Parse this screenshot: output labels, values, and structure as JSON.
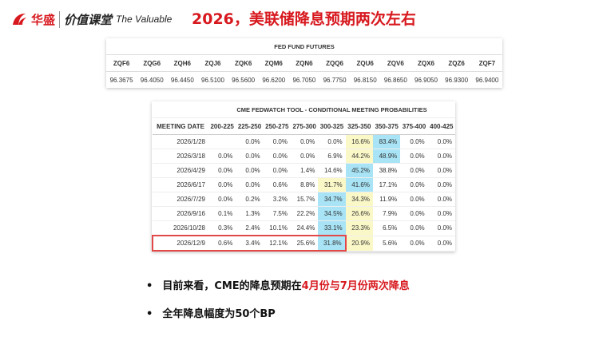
{
  "header": {
    "brand": "华盛",
    "course": "价值课堂",
    "tagline": "The Valuable",
    "title": "2026，美联储降息预期两次左右"
  },
  "futures_table": {
    "title": "FED FUND FUTURES",
    "columns": [
      "ZQF6",
      "ZQG6",
      "ZQH6",
      "ZQJ6",
      "ZQK6",
      "ZQM6",
      "ZQN6",
      "ZQQ6",
      "ZQU6",
      "ZQV6",
      "ZQX6",
      "ZQZ6",
      "ZQF7"
    ],
    "values": [
      "96.3675",
      "96.4050",
      "96.4450",
      "96.5100",
      "96.5600",
      "96.6200",
      "96.7050",
      "96.7750",
      "96.8150",
      "96.8650",
      "96.9050",
      "96.9300",
      "96.9400"
    ]
  },
  "fedwatch_table": {
    "title": "CME FEDWATCH TOOL - CONDITIONAL MEETING PROBABILITIES",
    "date_header": "MEETING DATE",
    "columns": [
      "200-225",
      "225-250",
      "250-275",
      "275-300",
      "300-325",
      "325-350",
      "350-375",
      "375-400",
      "400-425"
    ],
    "rows": [
      [
        "2026/1/28",
        null,
        "0.0%",
        "0.0%",
        "0.0%",
        "0.0%",
        "16.6%",
        "83.4%",
        "0.0%",
        "0.0%"
      ],
      [
        "2026/3/18",
        "0.0%",
        "0.0%",
        "0.0%",
        "0.0%",
        "6.9%",
        "44.2%",
        "48.9%",
        "0.0%",
        "0.0%"
      ],
      [
        "2026/4/29",
        "0.0%",
        "0.0%",
        "0.0%",
        "1.4%",
        "14.6%",
        "45.2%",
        "38.8%",
        "0.0%",
        "0.0%"
      ],
      [
        "2026/6/17",
        "0.0%",
        "0.0%",
        "0.6%",
        "8.8%",
        "31.7%",
        "41.6%",
        "17.1%",
        "0.0%",
        "0.0%"
      ],
      [
        "2026/7/29",
        "0.0%",
        "0.2%",
        "3.2%",
        "15.7%",
        "34.7%",
        "34.3%",
        "11.9%",
        "0.0%",
        "0.0%"
      ],
      [
        "2026/9/16",
        "0.1%",
        "1.3%",
        "7.5%",
        "22.2%",
        "34.5%",
        "26.6%",
        "7.9%",
        "0.0%",
        "0.0%"
      ],
      [
        "2026/10/28",
        "0.3%",
        "2.4%",
        "10.1%",
        "24.4%",
        "33.1%",
        "23.3%",
        "6.5%",
        "0.0%",
        "0.0%"
      ],
      [
        "2026/12/9",
        "0.6%",
        "3.4%",
        "12.1%",
        "25.6%",
        "31.8%",
        "20.9%",
        "5.6%",
        "0.0%",
        "0.0%"
      ]
    ]
  },
  "bullets": [
    {
      "text": "目前来看，CME的降息预期在",
      "highlight": "4月份与7月份两次降息"
    },
    {
      "text": "全年降息幅度为50个BP"
    }
  ]
}
